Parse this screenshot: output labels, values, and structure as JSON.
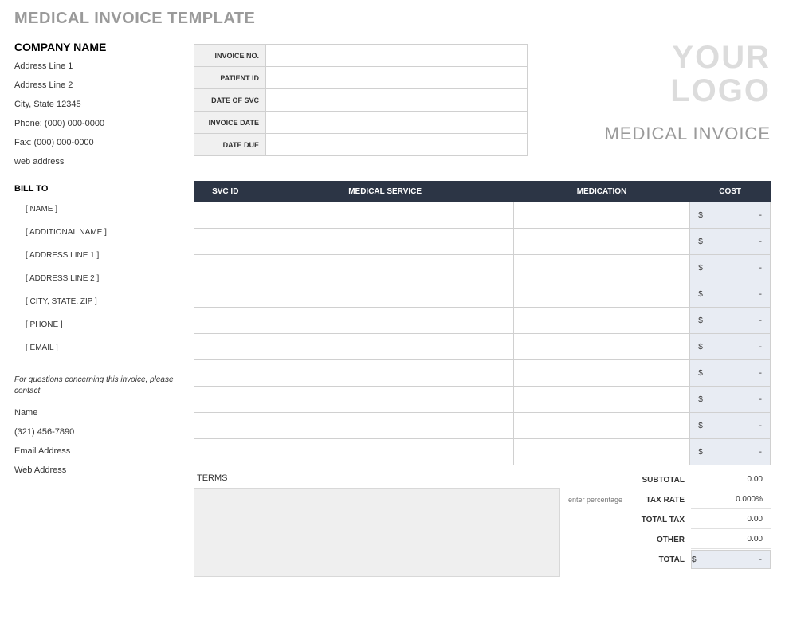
{
  "page_title": "MEDICAL INVOICE TEMPLATE",
  "company": {
    "name": "COMPANY NAME",
    "address1": "Address Line 1",
    "address2": "Address Line 2",
    "city_state_zip": "City, State  12345",
    "phone": "Phone: (000) 000-0000",
    "fax": "Fax: (000) 000-0000",
    "web": "web address"
  },
  "meta_labels": {
    "invoice_no": "INVOICE NO.",
    "patient_id": "PATIENT ID",
    "date_of_svc": "DATE OF SVC",
    "invoice_date": "INVOICE DATE",
    "date_due": "DATE DUE"
  },
  "logo": {
    "line1": "YOUR",
    "line2": "LOGO"
  },
  "invoice_type": "MEDICAL INVOICE",
  "billto": {
    "title": "BILL TO",
    "lines": [
      "[ NAME ]",
      "[ ADDITIONAL NAME ]",
      "[ ADDRESS LINE 1 ]",
      "[ ADDRESS LINE 2 ]",
      "[ CITY, STATE, ZIP ]",
      "[ PHONE ]",
      "[ EMAIL ]"
    ]
  },
  "table": {
    "headers": {
      "svcid": "SVC ID",
      "service": "MEDICAL SERVICE",
      "medication": "MEDICATION",
      "cost": "COST"
    },
    "row_count": 10,
    "cost_currency": "$",
    "cost_placeholder": "-"
  },
  "contact": {
    "intro": "For questions concerning this invoice, please contact",
    "name": "Name",
    "phone": "(321) 456-7890",
    "email": "Email Address",
    "web": "Web Address"
  },
  "terms_label": "TERMS",
  "totals": {
    "subtotal": {
      "label": "SUBTOTAL",
      "value": "0.00"
    },
    "tax_rate": {
      "hint": "enter percentage",
      "label": "TAX RATE",
      "value": "0.000%"
    },
    "total_tax": {
      "label": "TOTAL TAX",
      "value": "0.00"
    },
    "other": {
      "label": "OTHER",
      "value": "0.00"
    },
    "total": {
      "label": "TOTAL",
      "currency": "$",
      "value": "-"
    }
  },
  "colors": {
    "header_bg": "#2c3545",
    "header_fg": "#ffffff",
    "cost_bg": "#e8ecf3",
    "meta_label_bg": "#f0f0f0",
    "border": "#d0d0d0",
    "muted_text": "#9a9a9a",
    "logo_text": "#dcdcdc",
    "terms_bg": "#efefef"
  }
}
